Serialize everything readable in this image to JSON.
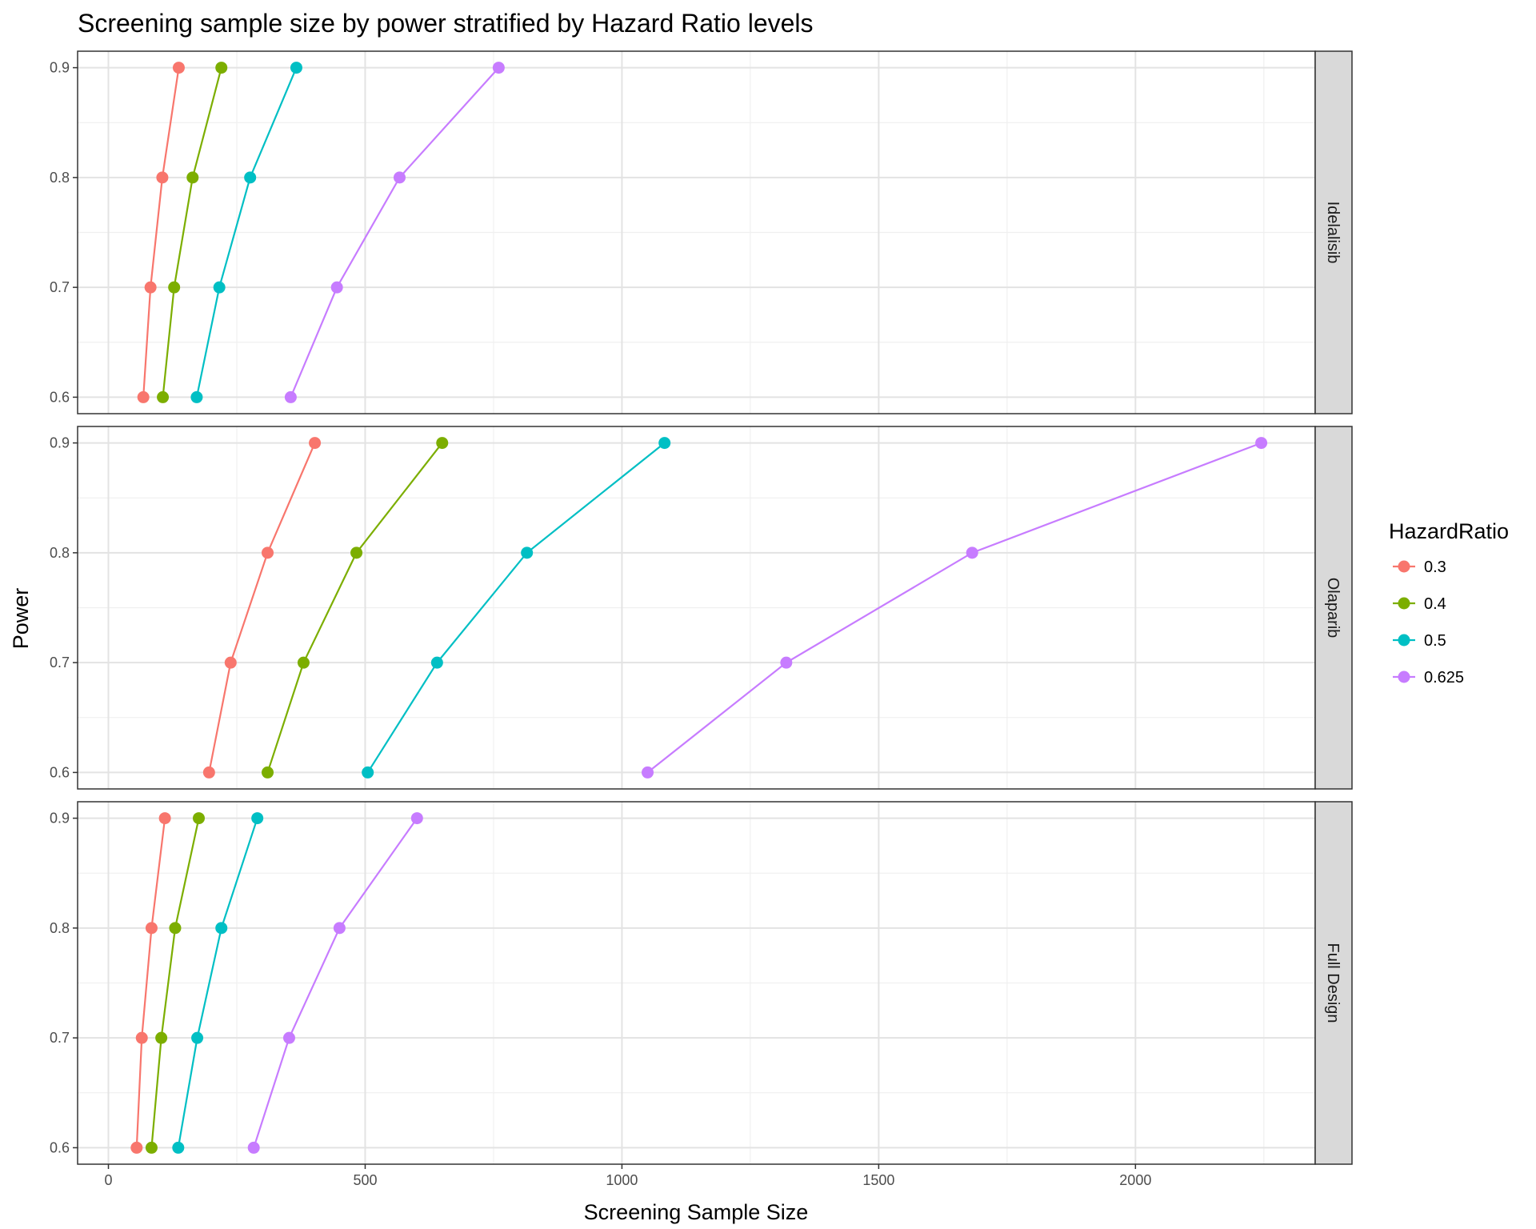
{
  "chart_data": {
    "type": "line",
    "title": "Screening sample size by power stratified by Hazard Ratio levels",
    "xlabel": "Screening Sample Size",
    "ylabel": "Power",
    "xlim": [
      -60,
      2350
    ],
    "ylim": [
      0.585,
      0.915
    ],
    "x_ticks": [
      0,
      500,
      1000,
      1500,
      2000
    ],
    "x_tick_labels": [
      "0",
      "500",
      "1000",
      "1500",
      "2000"
    ],
    "x_minor_ticks": [
      250,
      750,
      1250,
      1750,
      2250
    ],
    "y_ticks": [
      0.6,
      0.7,
      0.8,
      0.9
    ],
    "y_tick_labels": [
      "0.6",
      "0.7",
      "0.8",
      "0.9"
    ],
    "y_minor_ticks": [
      0.65,
      0.75,
      0.85
    ],
    "grid": true,
    "legend_title": "HazardRatio",
    "legend_position": "right",
    "series_colors": {
      "0.3": "#F8766D",
      "0.4": "#7CAE00",
      "0.5": "#00BFC4",
      "0.625": "#C77CFF"
    },
    "panels": [
      {
        "facet": "Idelalisib",
        "series": [
          {
            "name": "0.3",
            "points": [
              [
                68,
                0.6
              ],
              [
                82,
                0.7
              ],
              [
                105,
                0.8
              ],
              [
                137,
                0.9
              ]
            ]
          },
          {
            "name": "0.4",
            "points": [
              [
                106,
                0.6
              ],
              [
                128,
                0.7
              ],
              [
                164,
                0.8
              ],
              [
                220,
                0.9
              ]
            ]
          },
          {
            "name": "0.5",
            "points": [
              [
                172,
                0.6
              ],
              [
                216,
                0.7
              ],
              [
                276,
                0.8
              ],
              [
                366,
                0.9
              ]
            ]
          },
          {
            "name": "0.625",
            "points": [
              [
                355,
                0.6
              ],
              [
                445,
                0.7
              ],
              [
                567,
                0.8
              ],
              [
                760,
                0.9
              ]
            ]
          }
        ]
      },
      {
        "facet": "Olaparib",
        "series": [
          {
            "name": "0.3",
            "points": [
              [
                196,
                0.6
              ],
              [
                238,
                0.7
              ],
              [
                310,
                0.8
              ],
              [
                402,
                0.9
              ]
            ]
          },
          {
            "name": "0.4",
            "points": [
              [
                310,
                0.6
              ],
              [
                380,
                0.7
              ],
              [
                483,
                0.8
              ],
              [
                650,
                0.9
              ]
            ]
          },
          {
            "name": "0.5",
            "points": [
              [
                505,
                0.6
              ],
              [
                640,
                0.7
              ],
              [
                815,
                0.8
              ],
              [
                1083,
                0.9
              ]
            ]
          },
          {
            "name": "0.625",
            "points": [
              [
                1050,
                0.6
              ],
              [
                1320,
                0.7
              ],
              [
                1682,
                0.8
              ],
              [
                2245,
                0.9
              ]
            ]
          }
        ]
      },
      {
        "facet": "Full Design",
        "series": [
          {
            "name": "0.3",
            "points": [
              [
                55,
                0.6
              ],
              [
                65,
                0.7
              ],
              [
                84,
                0.8
              ],
              [
                110,
                0.9
              ]
            ]
          },
          {
            "name": "0.4",
            "points": [
              [
                84,
                0.6
              ],
              [
                103,
                0.7
              ],
              [
                130,
                0.8
              ],
              [
                176,
                0.9
              ]
            ]
          },
          {
            "name": "0.5",
            "points": [
              [
                136,
                0.6
              ],
              [
                173,
                0.7
              ],
              [
                220,
                0.8
              ],
              [
                290,
                0.9
              ]
            ]
          },
          {
            "name": "0.625",
            "points": [
              [
                283,
                0.6
              ],
              [
                352,
                0.7
              ],
              [
                450,
                0.8
              ],
              [
                601,
                0.9
              ]
            ]
          }
        ]
      }
    ]
  }
}
